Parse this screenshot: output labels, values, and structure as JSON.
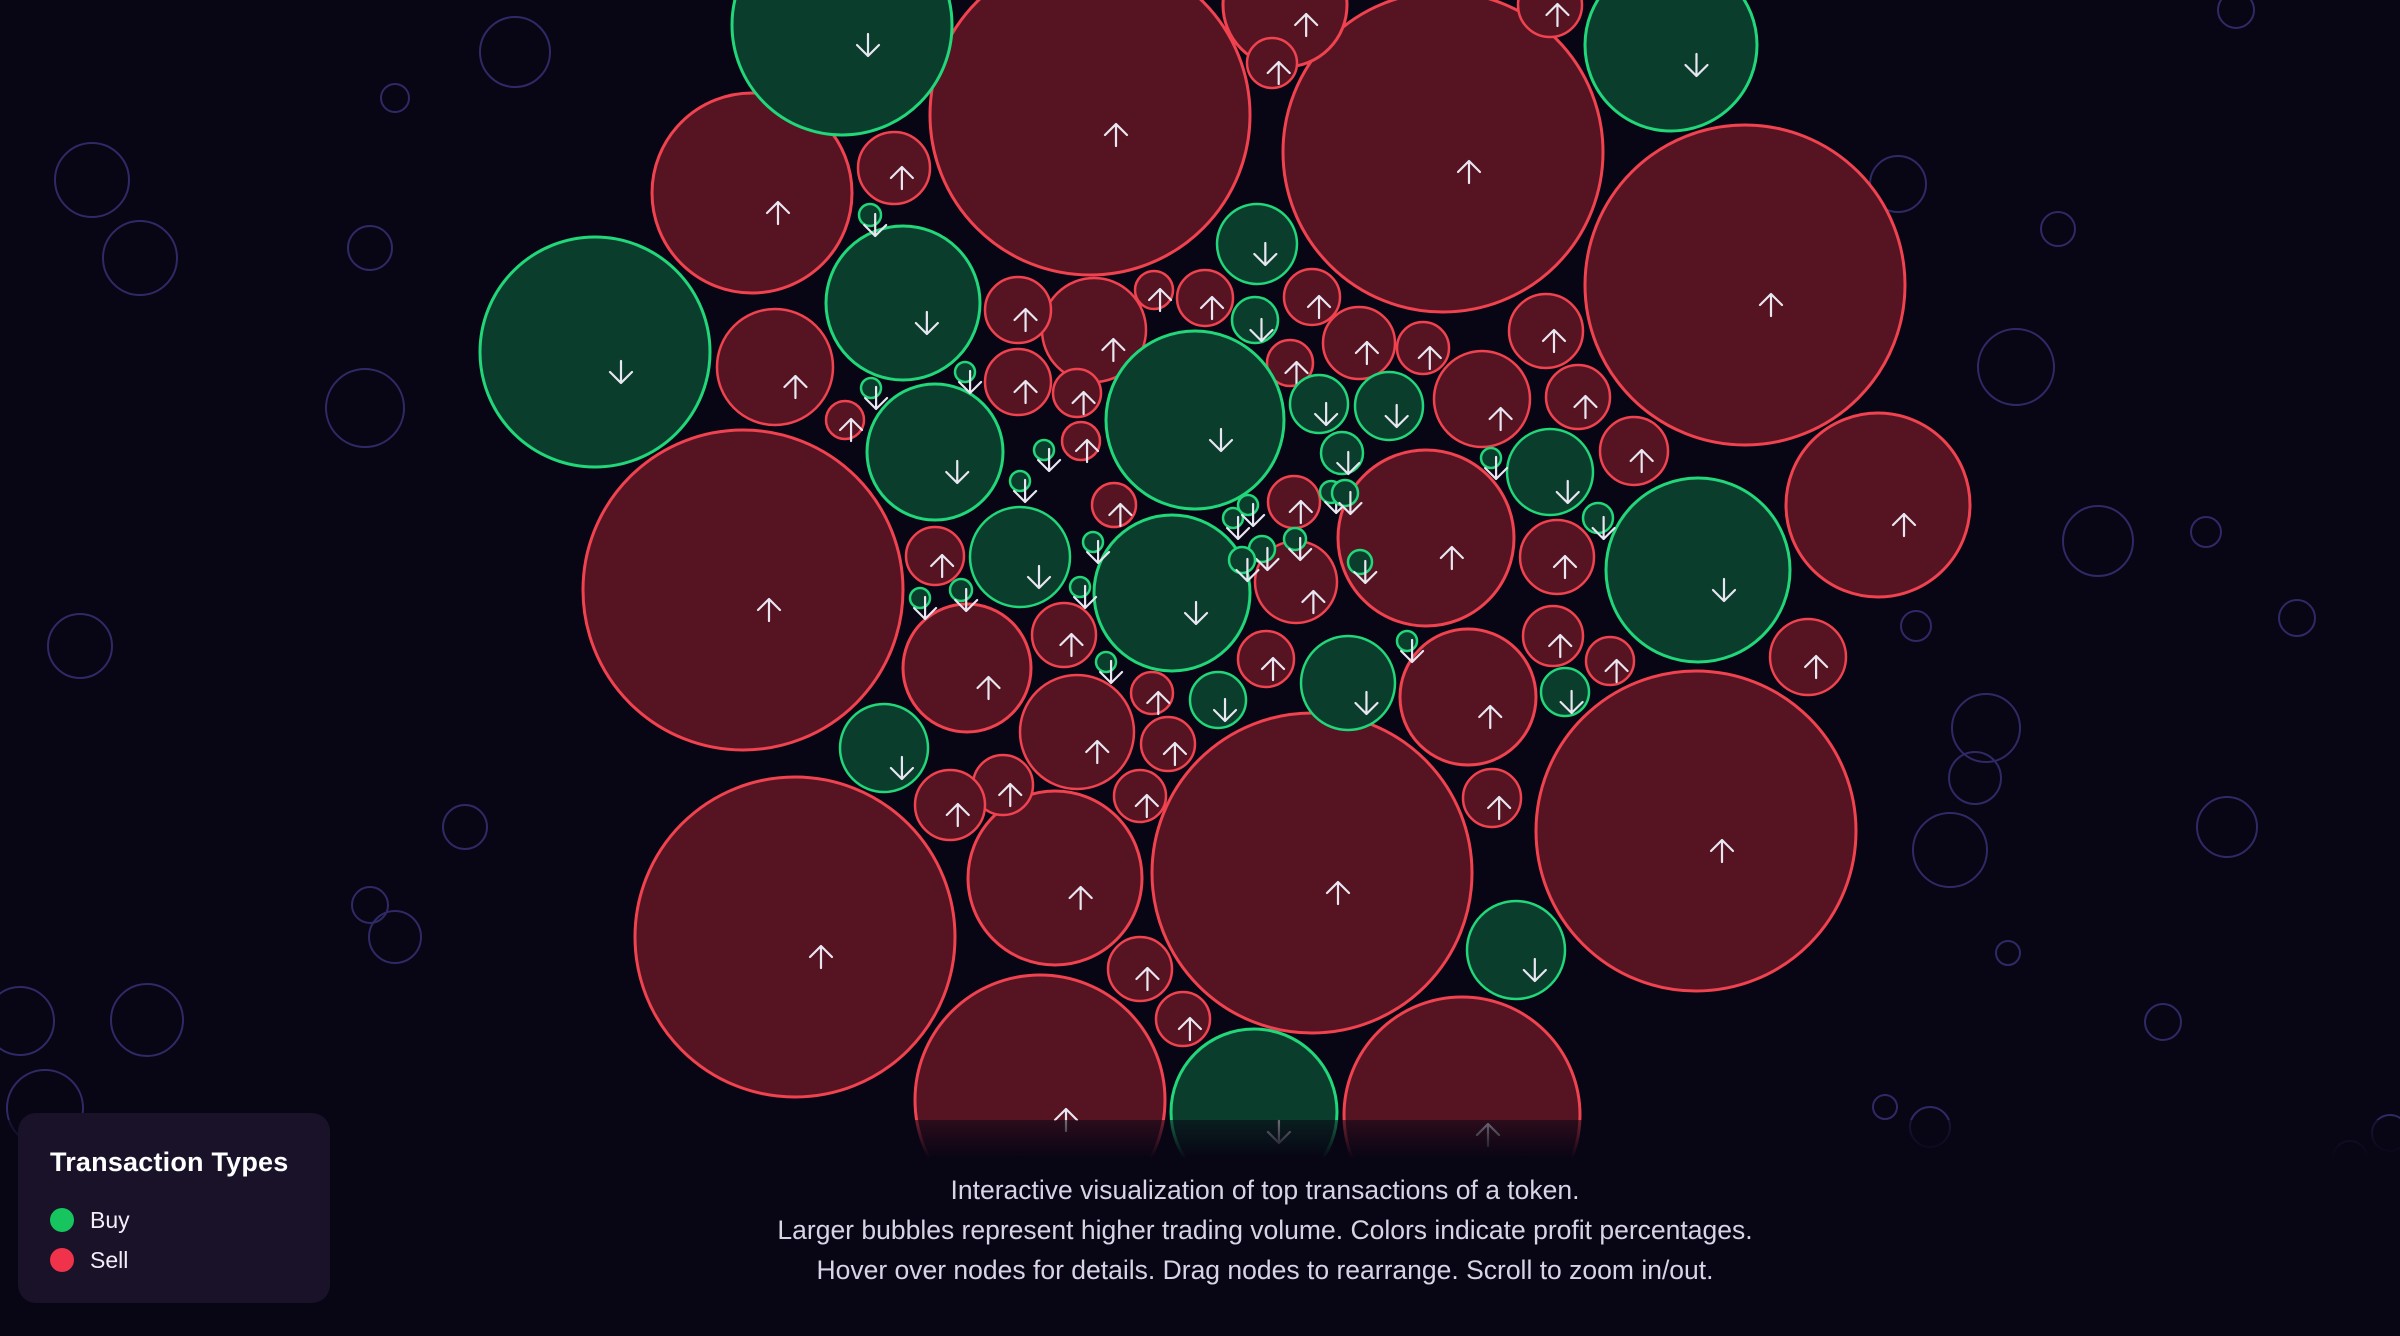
{
  "legend": {
    "title": "Transaction Types",
    "items": [
      {
        "label": "Buy",
        "color": "#16c55e"
      },
      {
        "label": "Sell",
        "color": "#f0334a"
      }
    ]
  },
  "caption": {
    "line1": "Interactive visualization of top transactions of a token.",
    "line2": "Larger bubbles represent higher trading volume. Colors indicate profit percentages.",
    "line3": "Hover over nodes for details. Drag nodes to rearrange. Scroll to zoom in/out."
  },
  "colors": {
    "background": "#080514",
    "buy_fill": "#0a3d2c",
    "buy_stroke": "#22d67a",
    "sell_fill": "#561423",
    "sell_stroke": "#f0424f",
    "ambient_stroke": "#2f2a66"
  },
  "icons": {
    "buy": "arrow-down-icon",
    "sell": "arrow-up-icon"
  }
}
